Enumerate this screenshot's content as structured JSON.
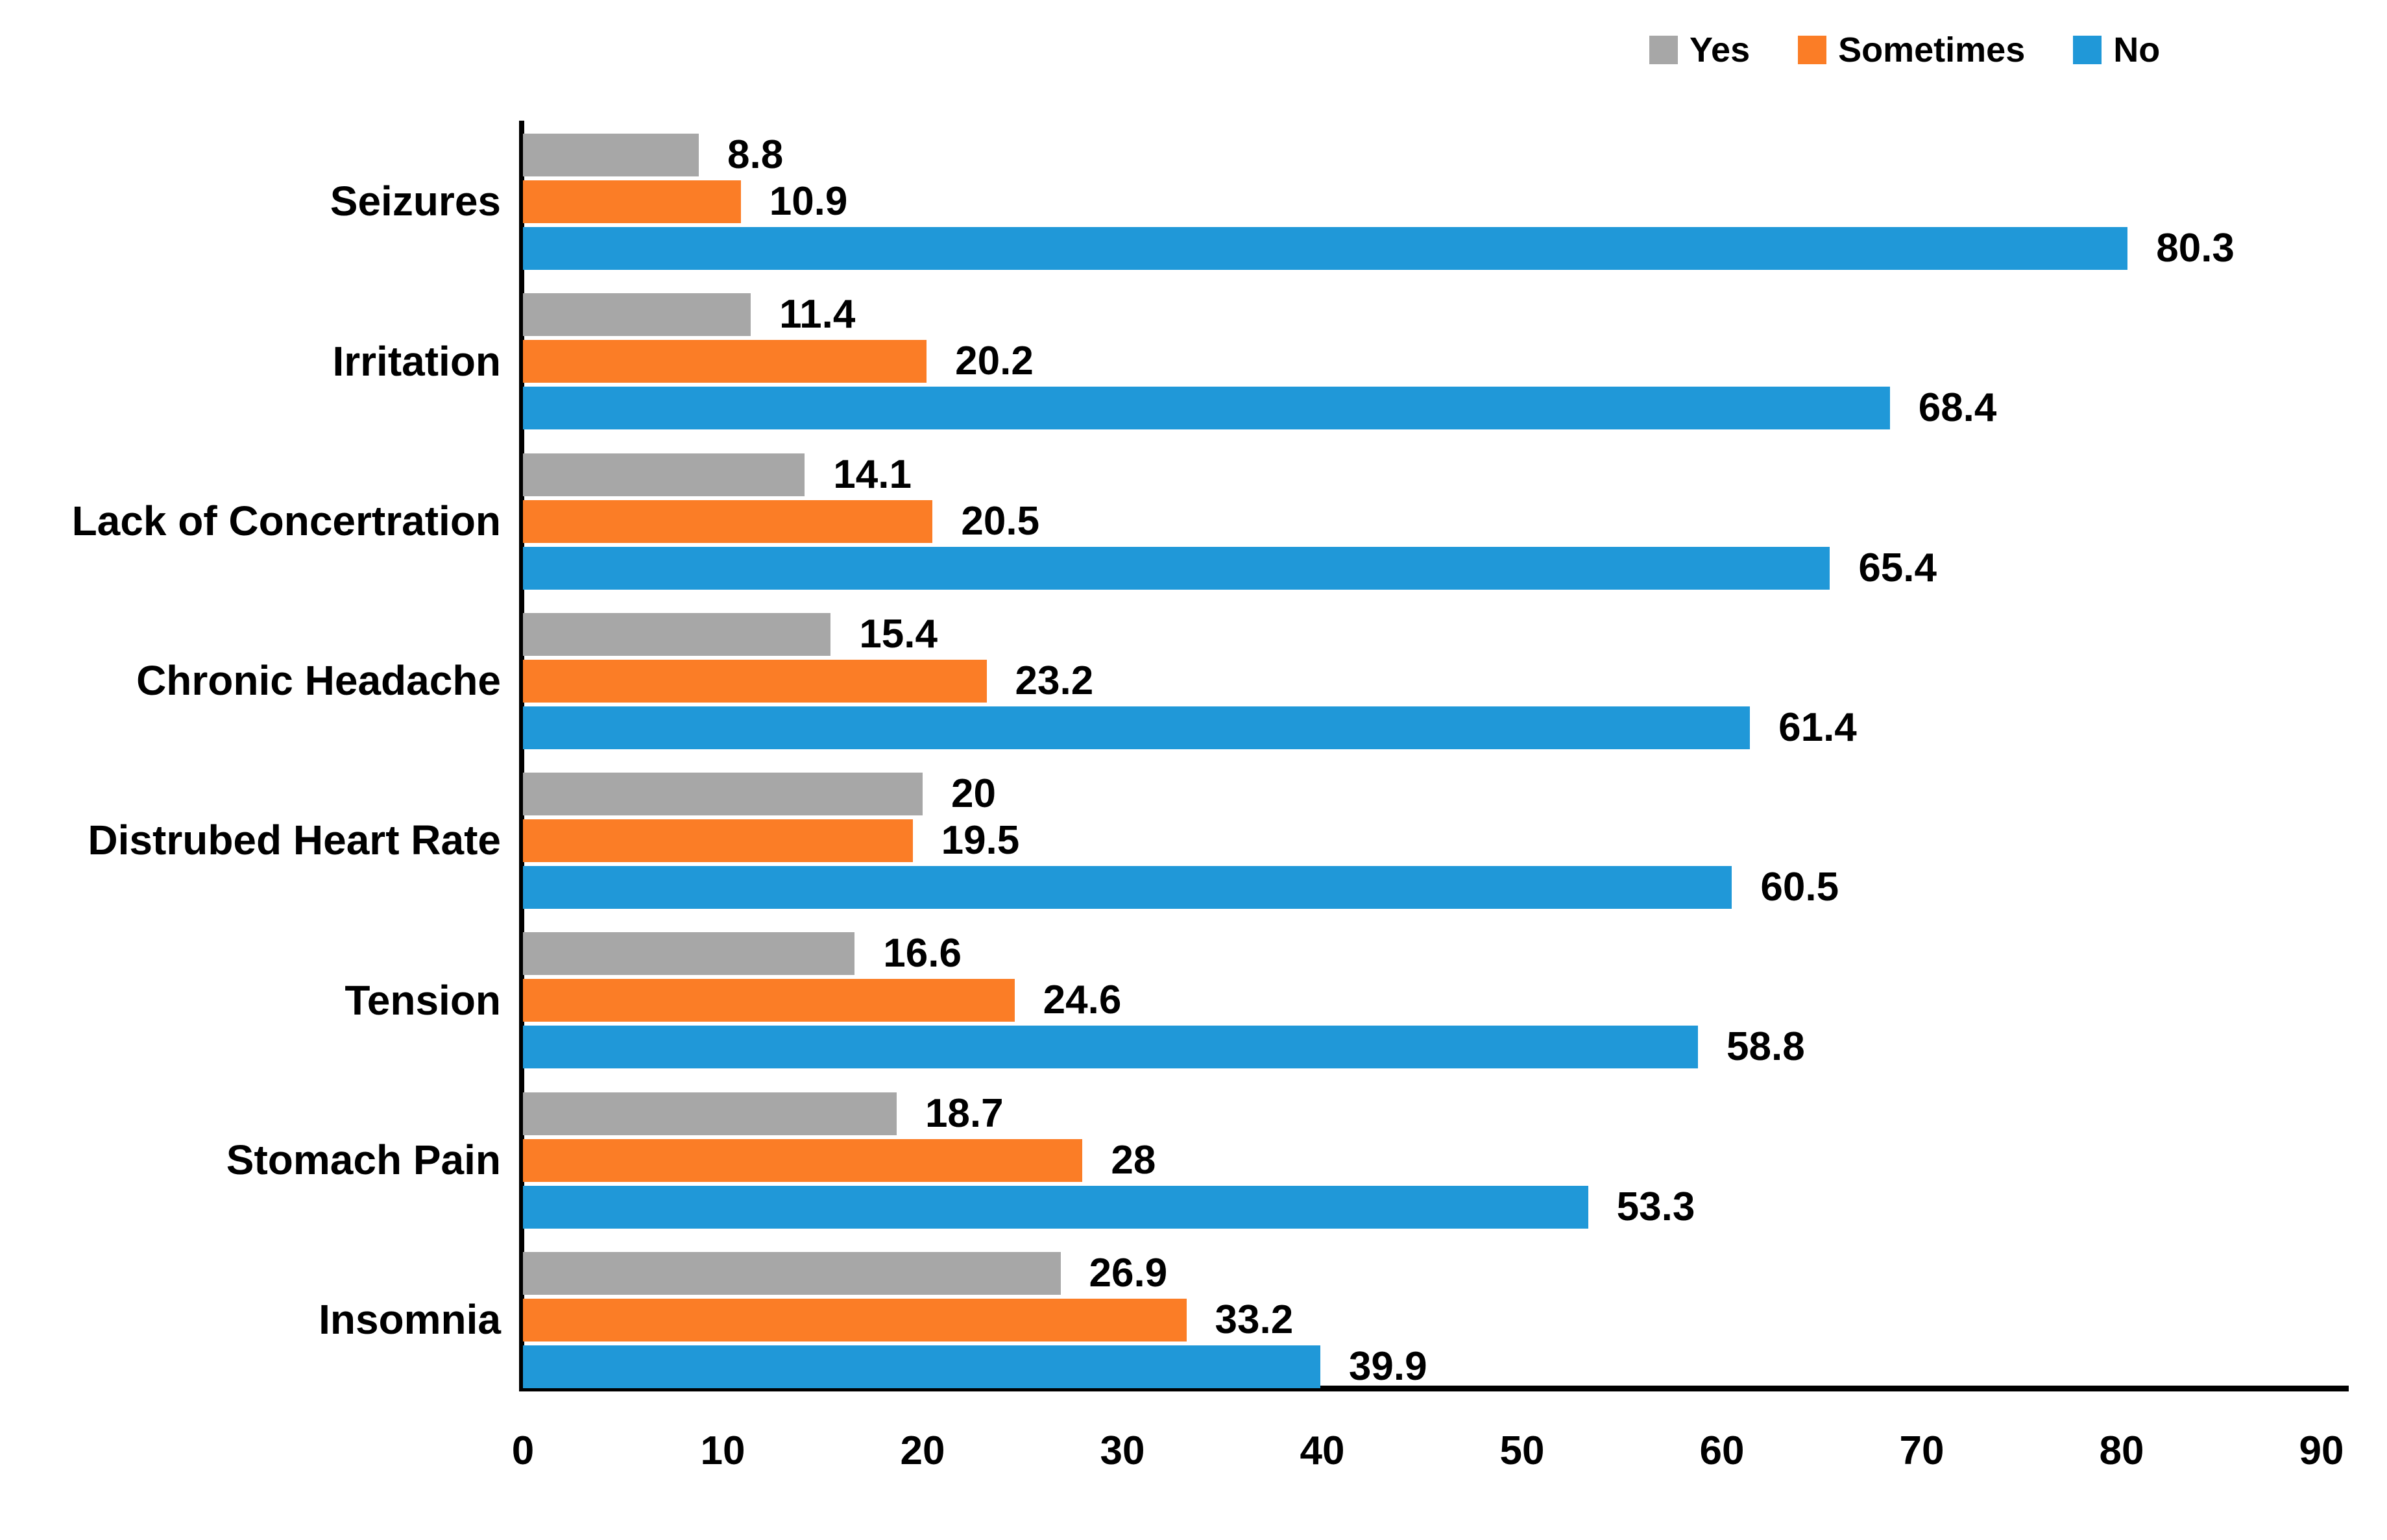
{
  "chart_data": {
    "type": "bar",
    "orientation": "horizontal-grouped",
    "title": "",
    "categories": [
      "Seizures",
      "Irritation",
      "Lack of Concertration",
      "Chronic Headache",
      "Distrubed Heart Rate",
      "Tension",
      "Stomach Pain",
      "Insomnia"
    ],
    "series": [
      {
        "name": "Yes",
        "color": "#A7A7A7",
        "values": [
          8.8,
          11.4,
          14.1,
          15.4,
          20,
          16.6,
          18.7,
          26.9
        ]
      },
      {
        "name": "Sometimes",
        "color": "#FB7D26",
        "values": [
          10.9,
          20.2,
          20.5,
          23.2,
          19.5,
          24.6,
          28,
          33.2
        ]
      },
      {
        "name": "No",
        "color": "#2098D8",
        "values": [
          80.3,
          68.4,
          65.4,
          61.4,
          60.5,
          58.8,
          53.3,
          39.9
        ]
      }
    ],
    "value_labels": [
      "8.8",
      "10.9",
      "80.3",
      "11.4",
      "20.2",
      "68.4",
      "14.1",
      "20.5",
      "65.4",
      "15.4",
      "23.2",
      "61.4",
      "20",
      "19.5",
      "60.5",
      "16.6",
      "24.6",
      "58.8",
      "18.7",
      "28",
      "53.3",
      "26.9",
      "33.2",
      "39.9"
    ],
    "x_axis": {
      "min": 0,
      "max": 90,
      "tick_interval": 10,
      "ticks": [
        0,
        10,
        20,
        30,
        40,
        50,
        60,
        70,
        80,
        90
      ]
    },
    "legend": {
      "position": "top-right",
      "entries": [
        "Yes",
        "Sometimes",
        "No"
      ]
    },
    "grid": false,
    "axis_color": "#000000",
    "text_color": "#000000",
    "background": "#FFFFFF"
  }
}
